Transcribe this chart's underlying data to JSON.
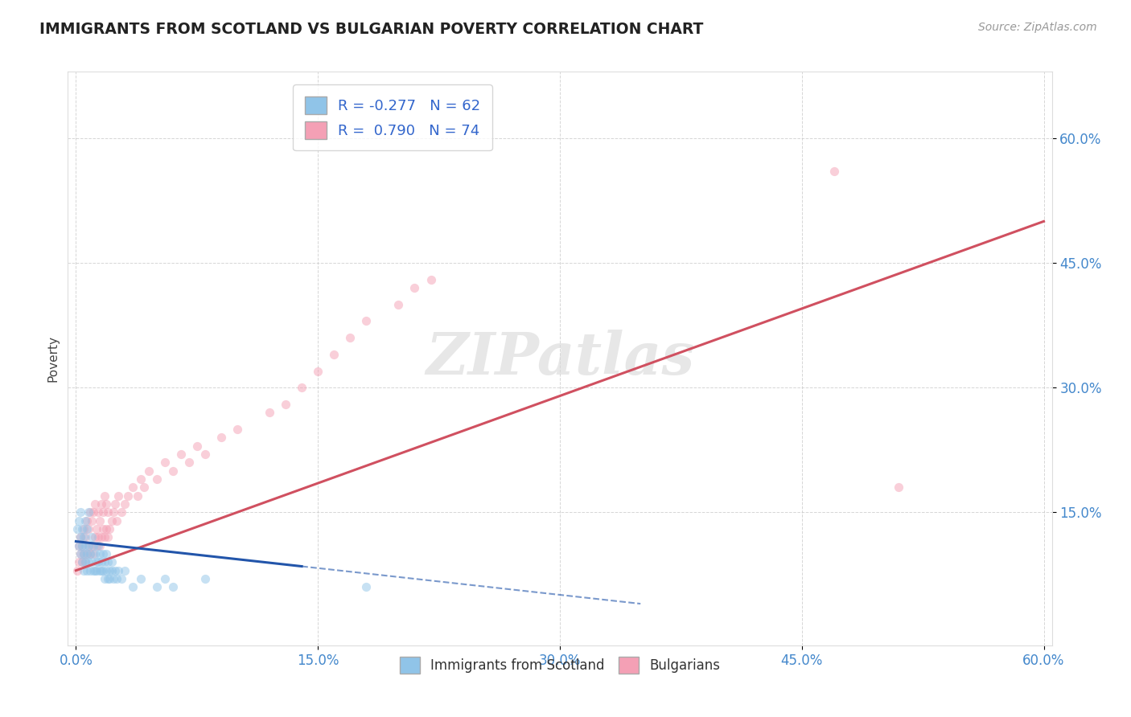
{
  "title": "IMMIGRANTS FROM SCOTLAND VS BULGARIAN POVERTY CORRELATION CHART",
  "source_text": "Source: ZipAtlas.com",
  "ylabel": "Poverty",
  "xlim": [
    -0.005,
    0.605
  ],
  "ylim": [
    -0.01,
    0.68
  ],
  "xtick_labels": [
    "0.0%",
    "15.0%",
    "30.0%",
    "45.0%",
    "60.0%"
  ],
  "xtick_vals": [
    0.0,
    0.15,
    0.3,
    0.45,
    0.6
  ],
  "ytick_labels": [
    "15.0%",
    "30.0%",
    "45.0%",
    "60.0%"
  ],
  "ytick_vals": [
    0.15,
    0.3,
    0.45,
    0.6
  ],
  "legend_r1_val": "-0.277",
  "legend_n1": "62",
  "legend_r2_val": "0.790",
  "legend_n2": "74",
  "color_scotland": "#90c4e8",
  "color_bulgarian": "#f4a0b5",
  "color_scotland_line": "#2255aa",
  "color_bulgarian_line": "#d05060",
  "watermark": "ZIPatlas",
  "background_color": "#ffffff",
  "grid_color": "#cccccc",
  "scatter_alpha": 0.5,
  "scatter_size": 65,
  "scotland_x": [
    0.001,
    0.002,
    0.002,
    0.003,
    0.003,
    0.003,
    0.004,
    0.004,
    0.004,
    0.005,
    0.005,
    0.005,
    0.006,
    0.006,
    0.006,
    0.007,
    0.007,
    0.007,
    0.008,
    0.008,
    0.008,
    0.009,
    0.009,
    0.01,
    0.01,
    0.011,
    0.011,
    0.012,
    0.012,
    0.013,
    0.013,
    0.014,
    0.014,
    0.015,
    0.015,
    0.016,
    0.016,
    0.017,
    0.017,
    0.018,
    0.018,
    0.019,
    0.019,
    0.02,
    0.02,
    0.021,
    0.021,
    0.022,
    0.022,
    0.023,
    0.024,
    0.025,
    0.026,
    0.028,
    0.03,
    0.035,
    0.04,
    0.05,
    0.055,
    0.06,
    0.08,
    0.18
  ],
  "scotland_y": [
    0.13,
    0.11,
    0.14,
    0.1,
    0.12,
    0.15,
    0.09,
    0.11,
    0.13,
    0.08,
    0.1,
    0.12,
    0.09,
    0.11,
    0.14,
    0.08,
    0.1,
    0.13,
    0.09,
    0.11,
    0.15,
    0.08,
    0.1,
    0.09,
    0.12,
    0.08,
    0.11,
    0.08,
    0.1,
    0.08,
    0.09,
    0.09,
    0.11,
    0.08,
    0.1,
    0.08,
    0.09,
    0.08,
    0.1,
    0.07,
    0.09,
    0.08,
    0.1,
    0.07,
    0.09,
    0.08,
    0.07,
    0.09,
    0.08,
    0.07,
    0.08,
    0.07,
    0.08,
    0.07,
    0.08,
    0.06,
    0.07,
    0.06,
    0.07,
    0.06,
    0.07,
    0.06
  ],
  "bulgarian_x": [
    0.001,
    0.002,
    0.002,
    0.003,
    0.003,
    0.004,
    0.004,
    0.005,
    0.005,
    0.006,
    0.006,
    0.007,
    0.007,
    0.008,
    0.008,
    0.009,
    0.009,
    0.01,
    0.01,
    0.011,
    0.011,
    0.012,
    0.012,
    0.013,
    0.013,
    0.014,
    0.014,
    0.015,
    0.015,
    0.016,
    0.016,
    0.017,
    0.017,
    0.018,
    0.018,
    0.019,
    0.019,
    0.02,
    0.02,
    0.021,
    0.022,
    0.023,
    0.024,
    0.025,
    0.026,
    0.028,
    0.03,
    0.032,
    0.035,
    0.038,
    0.04,
    0.042,
    0.045,
    0.05,
    0.055,
    0.06,
    0.065,
    0.07,
    0.075,
    0.08,
    0.09,
    0.1,
    0.12,
    0.13,
    0.14,
    0.15,
    0.16,
    0.17,
    0.18,
    0.2,
    0.21,
    0.22,
    0.47,
    0.51
  ],
  "bulgarian_y": [
    0.08,
    0.09,
    0.11,
    0.1,
    0.12,
    0.09,
    0.11,
    0.1,
    0.13,
    0.09,
    0.12,
    0.1,
    0.14,
    0.11,
    0.13,
    0.1,
    0.15,
    0.11,
    0.14,
    0.1,
    0.15,
    0.12,
    0.16,
    0.11,
    0.13,
    0.12,
    0.15,
    0.11,
    0.14,
    0.12,
    0.16,
    0.13,
    0.15,
    0.12,
    0.17,
    0.13,
    0.16,
    0.12,
    0.15,
    0.13,
    0.14,
    0.15,
    0.16,
    0.14,
    0.17,
    0.15,
    0.16,
    0.17,
    0.18,
    0.17,
    0.19,
    0.18,
    0.2,
    0.19,
    0.21,
    0.2,
    0.22,
    0.21,
    0.23,
    0.22,
    0.24,
    0.25,
    0.27,
    0.28,
    0.3,
    0.32,
    0.34,
    0.36,
    0.38,
    0.4,
    0.42,
    0.43,
    0.56,
    0.18
  ],
  "bulg_line_x0": 0.0,
  "bulg_line_y0": 0.08,
  "bulg_line_x1": 0.6,
  "bulg_line_y1": 0.5,
  "scot_line_solid_x0": 0.0,
  "scot_line_solid_y0": 0.115,
  "scot_line_solid_x1": 0.14,
  "scot_line_solid_y1": 0.085,
  "scot_line_dash_x1": 0.35,
  "scot_line_dash_y1": 0.04
}
